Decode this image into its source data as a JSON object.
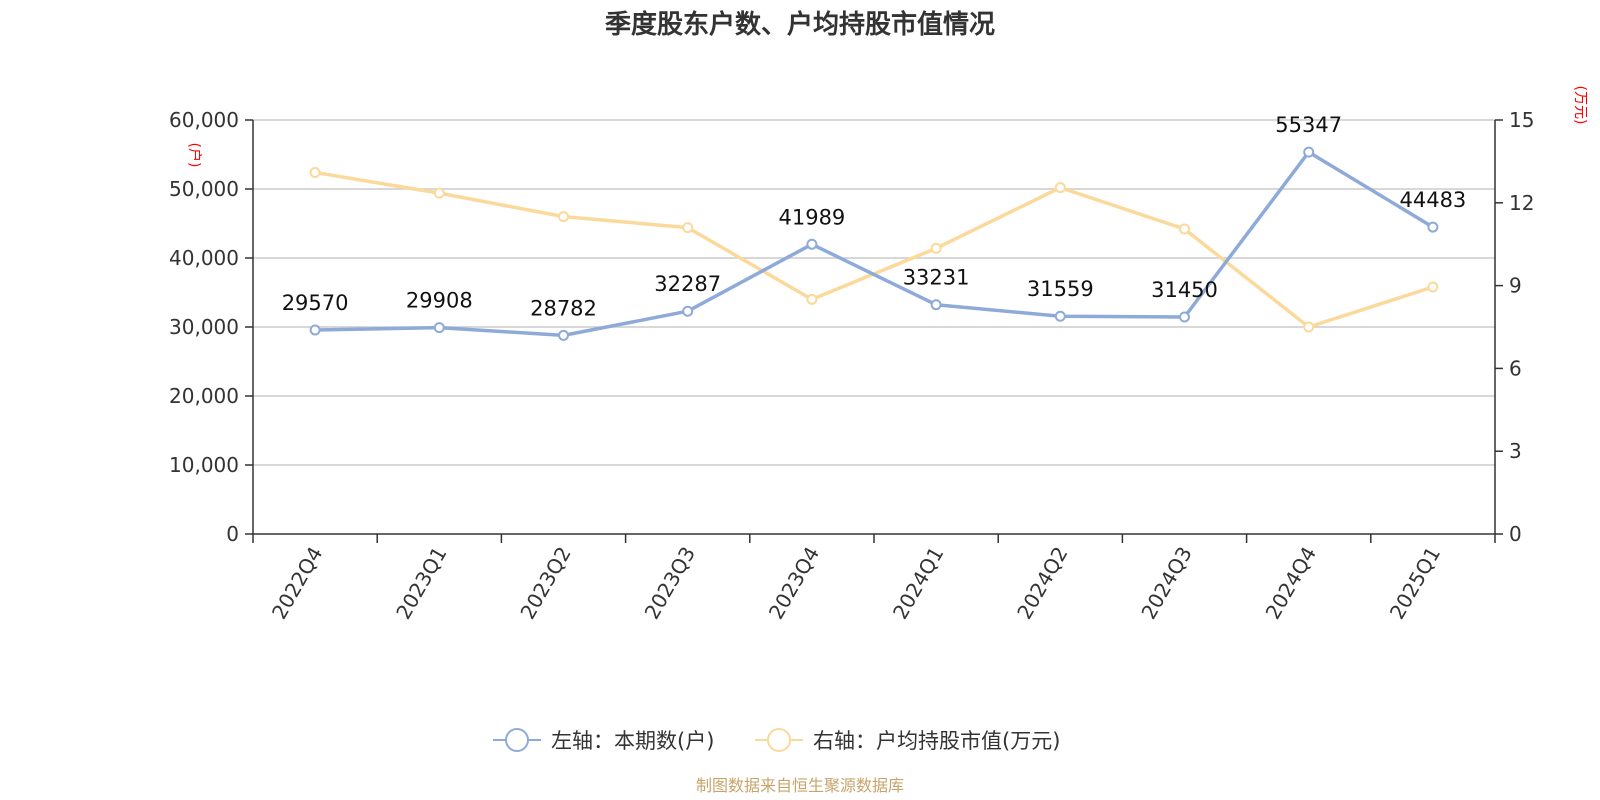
{
  "chart_data": {
    "type": "line",
    "title": "季度股东户数、户均持股市值情况",
    "categories": [
      "2022Q4",
      "2023Q1",
      "2023Q2",
      "2023Q3",
      "2023Q4",
      "2024Q1",
      "2024Q2",
      "2024Q3",
      "2024Q4",
      "2025Q1"
    ],
    "left_axis": {
      "unit": "(户)",
      "ylim": [
        0,
        60000
      ],
      "ticks": [
        0,
        10000,
        20000,
        30000,
        40000,
        50000,
        60000
      ],
      "tick_labels": [
        "0",
        "10,000",
        "20,000",
        "30,000",
        "40,000",
        "50,000",
        "60,000"
      ]
    },
    "right_axis": {
      "unit": "(万元)",
      "ylim": [
        0,
        15
      ],
      "ticks": [
        0,
        3,
        6,
        9,
        12,
        15
      ],
      "tick_labels": [
        "0",
        "3",
        "6",
        "9",
        "12",
        "15"
      ]
    },
    "series": [
      {
        "name": "左轴：本期数(户)",
        "axis": "left",
        "color": "#8eaad8",
        "values": [
          29570,
          29908,
          28782,
          32287,
          41989,
          33231,
          31559,
          31450,
          55347,
          44483
        ],
        "labels": [
          "29570",
          "29908",
          "28782",
          "32287",
          "41989",
          "33231",
          "31559",
          "31450",
          "55347",
          "44483"
        ]
      },
      {
        "name": "右轴：户均持股市值(万元)",
        "axis": "right",
        "color": "#fbd99a",
        "values": [
          13.1,
          12.35,
          11.5,
          11.1,
          8.5,
          10.35,
          12.55,
          11.05,
          7.5,
          8.95
        ]
      }
    ],
    "grid": true,
    "legend_position": "bottom-center"
  },
  "source": "制图数据来自恒生聚源数据库"
}
